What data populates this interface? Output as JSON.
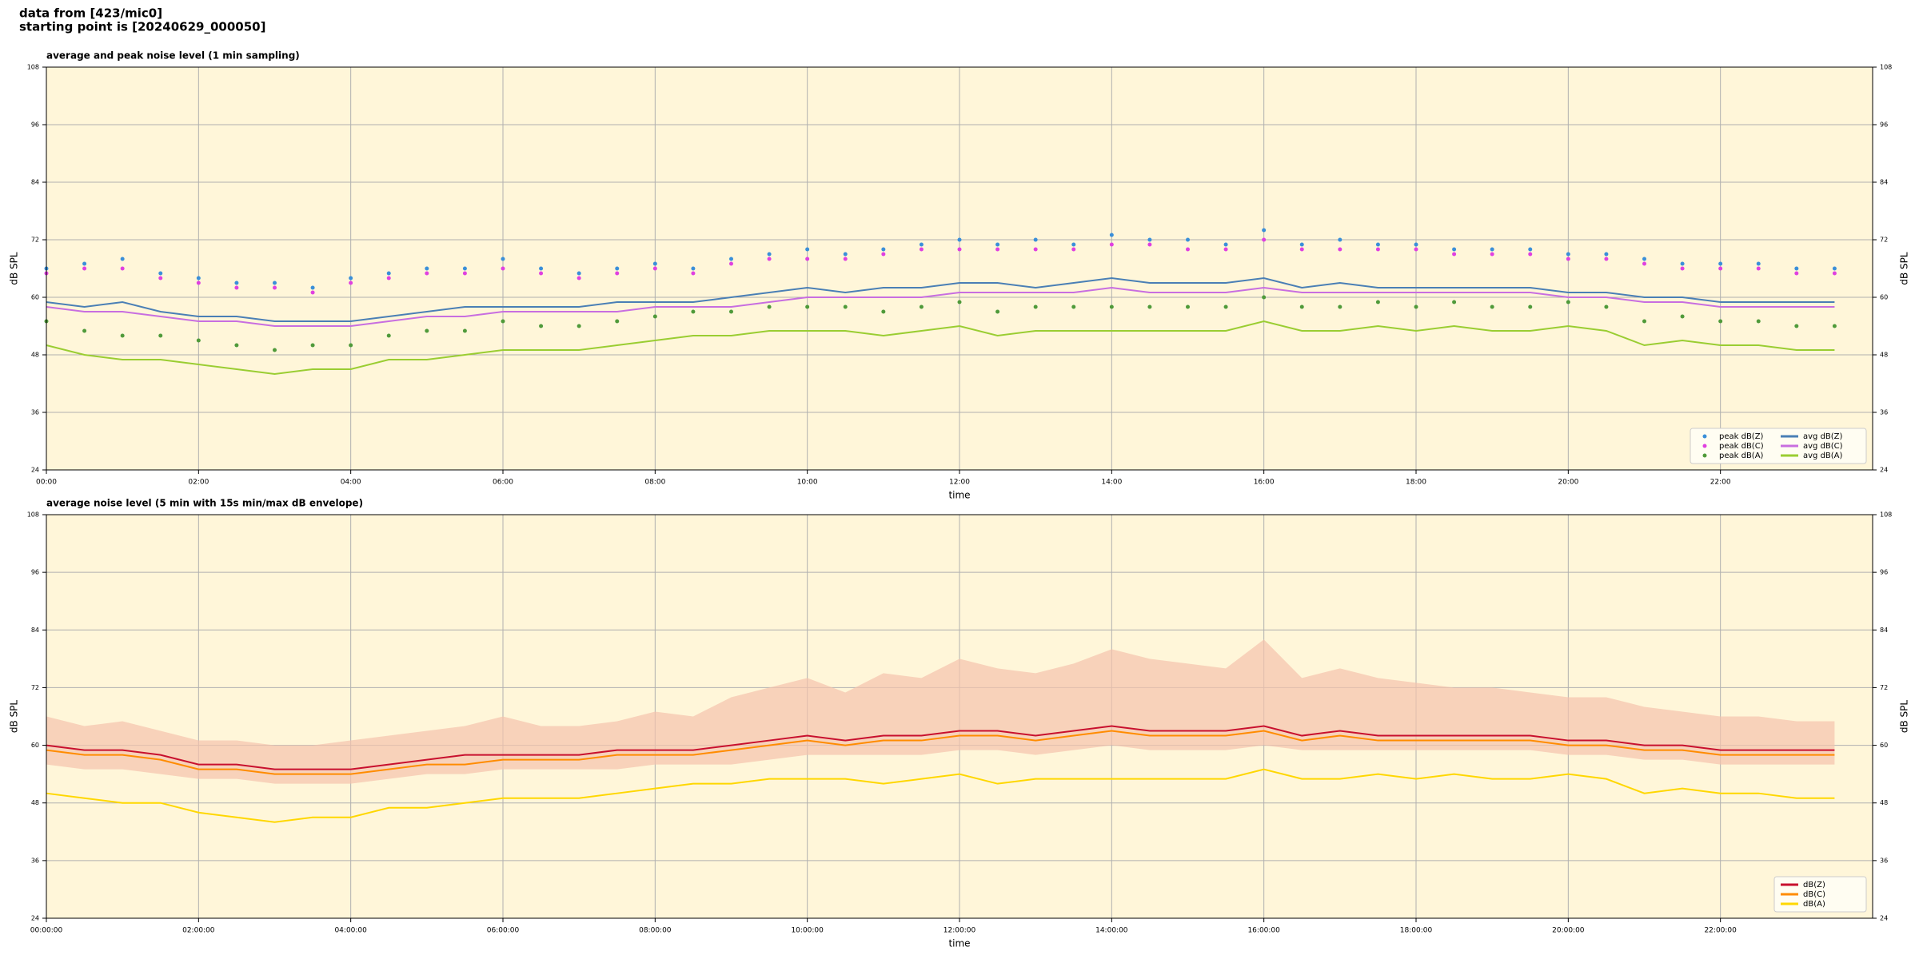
{
  "header": {
    "line1": "data from [423/mic0]",
    "line2": "starting point is [20240629_000050]"
  },
  "chart_data": [
    {
      "type": "line",
      "title": "average and peak noise level (1 min sampling)",
      "xlabel": "time",
      "ylabel": "dB SPL",
      "x": [
        0,
        0.5,
        1,
        1.5,
        2,
        2.5,
        3,
        3.5,
        4,
        4.5,
        5,
        5.5,
        6,
        6.5,
        7,
        7.5,
        8,
        8.5,
        9,
        9.5,
        10,
        10.5,
        11,
        11.5,
        12,
        12.5,
        13,
        13.5,
        14,
        14.5,
        15,
        15.5,
        16,
        16.5,
        17,
        17.5,
        18,
        18.5,
        19,
        19.5,
        20,
        20.5,
        21,
        21.5,
        22,
        22.5,
        23,
        23.5
      ],
      "xlim": [
        0,
        24
      ],
      "ylim": [
        24,
        108
      ],
      "yticks": [
        24,
        36,
        48,
        60,
        72,
        84,
        96,
        108
      ],
      "xticks": [
        {
          "value": 0,
          "label": "00:00"
        },
        {
          "value": 2,
          "label": "02:00"
        },
        {
          "value": 4,
          "label": "04:00"
        },
        {
          "value": 6,
          "label": "06:00"
        },
        {
          "value": 8,
          "label": "08:00"
        },
        {
          "value": 10,
          "label": "10:00"
        },
        {
          "value": 12,
          "label": "12:00"
        },
        {
          "value": 14,
          "label": "14:00"
        },
        {
          "value": 16,
          "label": "16:00"
        },
        {
          "value": 18,
          "label": "18:00"
        },
        {
          "value": 20,
          "label": "20:00"
        },
        {
          "value": 22,
          "label": "22:00"
        }
      ],
      "grid": true,
      "background": "#fff6d9",
      "legend": "lower right",
      "legend_columns": 2,
      "series": [
        {
          "name": "peak dB(Z)",
          "color": "#3a8fd9",
          "marker": "dot",
          "values": [
            66,
            67,
            68,
            65,
            64,
            63,
            63,
            62,
            64,
            65,
            66,
            66,
            68,
            66,
            65,
            66,
            67,
            66,
            68,
            69,
            70,
            69,
            70,
            71,
            72,
            71,
            72,
            71,
            73,
            72,
            72,
            71,
            74,
            71,
            72,
            71,
            71,
            70,
            70,
            70,
            69,
            69,
            68,
            67,
            67,
            67,
            66,
            66
          ]
        },
        {
          "name": "peak dB(C)",
          "color": "#e040e0",
          "marker": "dot",
          "values": [
            65,
            66,
            66,
            64,
            63,
            62,
            62,
            61,
            63,
            64,
            65,
            65,
            66,
            65,
            64,
            65,
            66,
            65,
            67,
            68,
            68,
            68,
            69,
            70,
            70,
            70,
            70,
            70,
            71,
            71,
            70,
            70,
            72,
            70,
            70,
            70,
            70,
            69,
            69,
            69,
            68,
            68,
            67,
            66,
            66,
            66,
            65,
            65
          ]
        },
        {
          "name": "peak dB(A)",
          "color": "#4f9a3a",
          "marker": "dot",
          "values": [
            55,
            53,
            52,
            52,
            51,
            50,
            49,
            50,
            50,
            52,
            53,
            53,
            55,
            54,
            54,
            55,
            56,
            57,
            57,
            58,
            58,
            58,
            57,
            58,
            59,
            57,
            58,
            58,
            58,
            58,
            58,
            58,
            60,
            58,
            58,
            59,
            58,
            59,
            58,
            58,
            59,
            58,
            55,
            56,
            55,
            55,
            54,
            54
          ]
        },
        {
          "name": "avg dB(Z)",
          "color": "#4a7fb5",
          "marker": "line",
          "values": [
            59,
            58,
            59,
            57,
            56,
            56,
            55,
            55,
            55,
            56,
            57,
            58,
            58,
            58,
            58,
            59,
            59,
            59,
            60,
            61,
            62,
            61,
            62,
            62,
            63,
            63,
            62,
            63,
            64,
            63,
            63,
            63,
            64,
            62,
            63,
            62,
            62,
            62,
            62,
            62,
            61,
            61,
            60,
            60,
            59,
            59,
            59,
            59
          ]
        },
        {
          "name": "avg dB(C)",
          "color": "#c86ee0",
          "marker": "line",
          "values": [
            58,
            57,
            57,
            56,
            55,
            55,
            54,
            54,
            54,
            55,
            56,
            56,
            57,
            57,
            57,
            57,
            58,
            58,
            58,
            59,
            60,
            60,
            60,
            60,
            61,
            61,
            61,
            61,
            62,
            61,
            61,
            61,
            62,
            61,
            61,
            61,
            61,
            61,
            61,
            61,
            60,
            60,
            59,
            59,
            58,
            58,
            58,
            58
          ]
        },
        {
          "name": "avg dB(A)",
          "color": "#9acd32",
          "marker": "line",
          "values": [
            50,
            48,
            47,
            47,
            46,
            45,
            44,
            45,
            45,
            47,
            47,
            48,
            49,
            49,
            49,
            50,
            51,
            52,
            52,
            53,
            53,
            53,
            52,
            53,
            54,
            52,
            53,
            53,
            53,
            53,
            53,
            53,
            55,
            53,
            53,
            54,
            53,
            54,
            53,
            53,
            54,
            53,
            50,
            51,
            50,
            50,
            49,
            49
          ]
        }
      ]
    },
    {
      "type": "line",
      "title": "average noise level (5 min with 15s min/max dB envelope)",
      "xlabel": "time",
      "ylabel": "dB SPL",
      "x": [
        0,
        0.5,
        1,
        1.5,
        2,
        2.5,
        3,
        3.5,
        4,
        4.5,
        5,
        5.5,
        6,
        6.5,
        7,
        7.5,
        8,
        8.5,
        9,
        9.5,
        10,
        10.5,
        11,
        11.5,
        12,
        12.5,
        13,
        13.5,
        14,
        14.5,
        15,
        15.5,
        16,
        16.5,
        17,
        17.5,
        18,
        18.5,
        19,
        19.5,
        20,
        20.5,
        21,
        21.5,
        22,
        22.5,
        23,
        23.5
      ],
      "xlim": [
        0,
        24
      ],
      "ylim": [
        24,
        108
      ],
      "yticks": [
        24,
        36,
        48,
        60,
        72,
        84,
        96,
        108
      ],
      "xticks": [
        {
          "value": 0,
          "label": "00:00:00"
        },
        {
          "value": 2,
          "label": "02:00:00"
        },
        {
          "value": 4,
          "label": "04:00:00"
        },
        {
          "value": 6,
          "label": "06:00:00"
        },
        {
          "value": 8,
          "label": "08:00:00"
        },
        {
          "value": 10,
          "label": "10:00:00"
        },
        {
          "value": 12,
          "label": "12:00:00"
        },
        {
          "value": 14,
          "label": "14:00:00"
        },
        {
          "value": 16,
          "label": "16:00:00"
        },
        {
          "value": 18,
          "label": "18:00:00"
        },
        {
          "value": 20,
          "label": "20:00:00"
        },
        {
          "value": 22,
          "label": "22:00:00"
        }
      ],
      "grid": true,
      "background": "#fff6d9",
      "legend": "lower right",
      "legend_columns": 1,
      "envelope": {
        "color": "#f5c3ad",
        "low": [
          56,
          55,
          55,
          54,
          53,
          53,
          52,
          52,
          52,
          53,
          54,
          54,
          55,
          55,
          55,
          55,
          56,
          56,
          56,
          57,
          58,
          58,
          58,
          58,
          59,
          59,
          58,
          59,
          60,
          59,
          59,
          59,
          60,
          59,
          59,
          59,
          59,
          59,
          59,
          59,
          58,
          58,
          57,
          57,
          56,
          56,
          56,
          56
        ],
        "high": [
          66,
          64,
          65,
          63,
          61,
          61,
          60,
          60,
          61,
          62,
          63,
          64,
          66,
          64,
          64,
          65,
          67,
          66,
          70,
          72,
          74,
          71,
          75,
          74,
          78,
          76,
          75,
          77,
          80,
          78,
          77,
          76,
          82,
          74,
          76,
          74,
          73,
          72,
          72,
          71,
          70,
          70,
          68,
          67,
          66,
          66,
          65,
          65
        ]
      },
      "series": [
        {
          "name": "dB(Z)",
          "color": "#c8102e",
          "marker": "line",
          "values": [
            60,
            59,
            59,
            58,
            56,
            56,
            55,
            55,
            55,
            56,
            57,
            58,
            58,
            58,
            58,
            59,
            59,
            59,
            60,
            61,
            62,
            61,
            62,
            62,
            63,
            63,
            62,
            63,
            64,
            63,
            63,
            63,
            64,
            62,
            63,
            62,
            62,
            62,
            62,
            62,
            61,
            61,
            60,
            60,
            59,
            59,
            59,
            59
          ]
        },
        {
          "name": "dB(C)",
          "color": "#ff8c00",
          "marker": "line",
          "values": [
            59,
            58,
            58,
            57,
            55,
            55,
            54,
            54,
            54,
            55,
            56,
            56,
            57,
            57,
            57,
            58,
            58,
            58,
            59,
            60,
            61,
            60,
            61,
            61,
            62,
            62,
            61,
            62,
            63,
            62,
            62,
            62,
            63,
            61,
            62,
            61,
            61,
            61,
            61,
            61,
            60,
            60,
            59,
            59,
            58,
            58,
            58,
            58
          ]
        },
        {
          "name": "dB(A)",
          "color": "#ffd700",
          "marker": "line",
          "values": [
            50,
            49,
            48,
            48,
            46,
            45,
            44,
            45,
            45,
            47,
            47,
            48,
            49,
            49,
            49,
            50,
            51,
            52,
            52,
            53,
            53,
            53,
            52,
            53,
            54,
            52,
            53,
            53,
            53,
            53,
            53,
            53,
            55,
            53,
            53,
            54,
            53,
            54,
            53,
            53,
            54,
            53,
            50,
            51,
            50,
            50,
            49,
            49
          ]
        }
      ]
    }
  ]
}
